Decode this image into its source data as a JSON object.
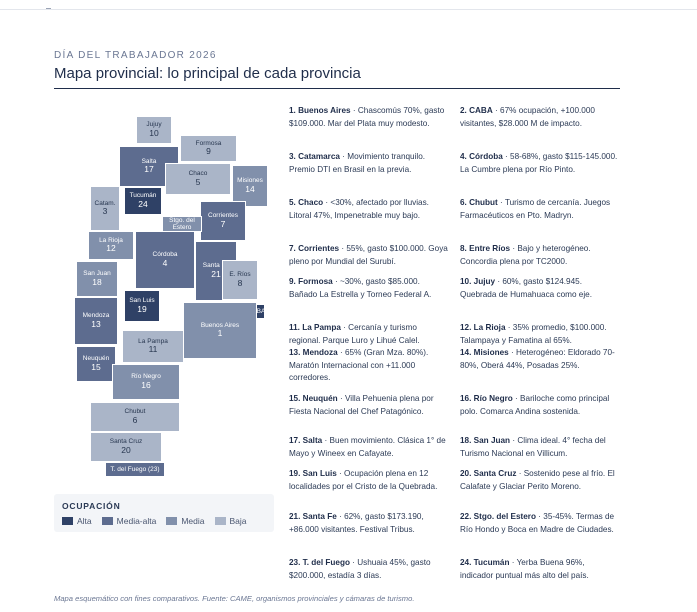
{
  "eyebrow": "DÍA DEL TRABAJADOR 2026",
  "title": "Mapa provincial: lo principal de cada provincia",
  "colors": {
    "alta": "#2f4166",
    "media_alta": "#5d6c8f",
    "media": "#8190ab",
    "baja": "#aab5c8"
  },
  "map": {
    "provinces": [
      {
        "name": "Jujuy",
        "value": "10",
        "level": "baja"
      },
      {
        "name": "Formosa",
        "value": "9",
        "level": "baja"
      },
      {
        "name": "Salta",
        "value": "17",
        "level": "media-alta"
      },
      {
        "name": "Chaco",
        "value": "5",
        "level": "baja"
      },
      {
        "name": "Misiones",
        "value": "14",
        "level": "media"
      },
      {
        "name": "Catam.",
        "value": "3",
        "level": "baja"
      },
      {
        "name": "Tucumán",
        "value": "24",
        "level": "alta"
      },
      {
        "name": "Corrientes",
        "value": "7",
        "level": "media-alta"
      },
      {
        "name": "Stgo. del Estero",
        "value": "",
        "level": "media"
      },
      {
        "name": "La Rioja",
        "value": "12",
        "level": "media"
      },
      {
        "name": "Córdoba",
        "value": "4",
        "level": "media-alta"
      },
      {
        "name": "Santa Fe",
        "value": "21",
        "level": "media-alta"
      },
      {
        "name": "E. Ríos",
        "value": "8",
        "level": "baja"
      },
      {
        "name": "San Juan",
        "value": "18",
        "level": "media"
      },
      {
        "name": "San Luis",
        "value": "19",
        "level": "alta"
      },
      {
        "name": "Mendoza",
        "value": "13",
        "level": "media-alta"
      },
      {
        "name": "CABA",
        "value": "",
        "level": "alta"
      },
      {
        "name": "Buenos Aires",
        "value": "1",
        "level": "media"
      },
      {
        "name": "La Pampa",
        "value": "11",
        "level": "baja"
      },
      {
        "name": "Neuquén",
        "value": "15",
        "level": "media-alta"
      },
      {
        "name": "Río Negro",
        "value": "16",
        "level": "media"
      },
      {
        "name": "Chubut",
        "value": "6",
        "level": "baja"
      },
      {
        "name": "Santa Cruz",
        "value": "20",
        "level": "baja"
      },
      {
        "name": "T. del Fuego (23)",
        "value": "",
        "level": "media-alta"
      }
    ]
  },
  "legend": {
    "title": "OCUPACIÓN",
    "items": [
      {
        "label": "Alta",
        "level": "alta"
      },
      {
        "label": "Media-alta",
        "level": "media-alta"
      },
      {
        "label": "Media",
        "level": "media"
      },
      {
        "label": "Baja",
        "level": "baja"
      }
    ]
  },
  "entries": [
    {
      "head": "1. Buenos Aires",
      "text": " · Chascomús 70%, gasto $109.000. Mar del Plata muy modesto."
    },
    {
      "head": "2. CABA",
      "text": " · 67% ocupación, +100.000 visitantes, $28.000 M de impacto."
    },
    {
      "head": "3. Catamarca",
      "text": " · Movimiento tranquilo. Premio DTI en Brasil en la previa."
    },
    {
      "head": "4. Córdoba",
      "text": " · 58-68%, gasto $115-145.000. La Cumbre plena por Río Pinto."
    },
    {
      "head": "5. Chaco",
      "text": " · <30%, afectado por lluvias. Litoral 47%, Impenetrable muy bajo."
    },
    {
      "head": "6. Chubut",
      "text": " · Turismo de cercanía. Juegos Farmacéuticos en Pto. Madryn."
    },
    {
      "head": "7. Corrientes",
      "text": " · 55%, gasto $100.000. Goya pleno por Mundial del Surubí."
    },
    {
      "head": "8. Entre Ríos",
      "text": " · Bajo y heterogéneo. Concordia plena por TC2000."
    },
    {
      "head": "9. Formosa",
      "text": " · ~30%, gasto $85.000. Bañado La Estrella y Torneo Federal A."
    },
    {
      "head": "10. Jujuy",
      "text": " · 60%, gasto $124.945. Quebrada de Humahuaca como eje."
    },
    {
      "head": "11. La Pampa",
      "text": " · Cercanía y turismo regional. Parque Luro y Lihué Calel."
    },
    {
      "head": "12. La Rioja",
      "text": " · 35% promedio, $100.000. Talampaya y Famatina al 65%."
    },
    {
      "head": "13. Mendoza",
      "text": " · 65% (Gran Mza. 80%). Maratón Internacional con +11.000 corredores."
    },
    {
      "head": "14. Misiones",
      "text": " · Heterogéneo: Eldorado 70-80%, Oberá 44%, Posadas 25%."
    },
    {
      "head": "15. Neuquén",
      "text": " · Villa Pehuenia plena por Fiesta Nacional del Chef Patagónico."
    },
    {
      "head": "16. Río Negro",
      "text": " · Bariloche como principal polo. Comarca Andina sostenida."
    },
    {
      "head": "17. Salta",
      "text": " · Buen movimiento. Clásica 1° de Mayo y Wineex en Cafayate."
    },
    {
      "head": "18. San Juan",
      "text": " · Clima ideal. 4° fecha del Turismo Nacional en Villicum."
    },
    {
      "head": "19. San Luis",
      "text": " · Ocupación plena en 12 localidades por el Cristo de la Quebrada."
    },
    {
      "head": "20. Santa Cruz",
      "text": " · Sostenido pese al frío. El Calafate y Glaciar Perito Moreno."
    },
    {
      "head": "21. Santa Fe",
      "text": " · 62%, gasto $173.190, +86.000 visitantes. Festival Tribus."
    },
    {
      "head": "22. Stgo. del Estero",
      "text": " · 35-45%. Termas de Río Hondo y Boca en Madre de Ciudades."
    },
    {
      "head": "23. T. del Fuego",
      "text": " · Ushuaia 45%, gasto $200.000, estadía 3 días."
    },
    {
      "head": "24. Tucumán",
      "text": " · Yerba Buena 96%, indicador puntual más alto del país."
    }
  ],
  "footer": "Mapa esquemático con fines comparativos. Fuente: CAME, organismos provinciales y cámaras de turismo."
}
